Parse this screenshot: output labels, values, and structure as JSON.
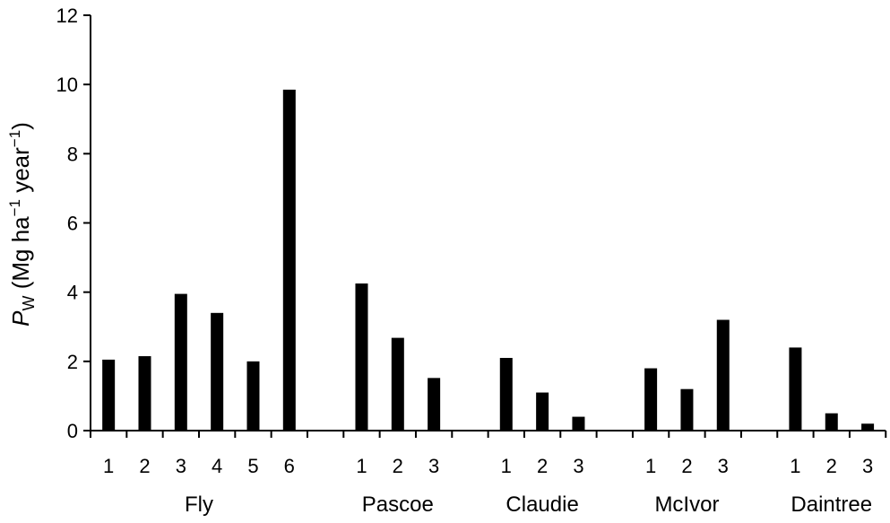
{
  "chart_data": {
    "type": "bar",
    "ylabel": {
      "symbol": "P",
      "subscript": "W",
      "unit_open": " (Mg ha",
      "exp1": "−1",
      "unit_mid": " year",
      "exp2": "−1",
      "unit_close": ")"
    },
    "ylim": [
      0,
      12
    ],
    "yticks": [
      "0",
      "2",
      "4",
      "6",
      "8",
      "10",
      "12"
    ],
    "grid": false,
    "bar_color": "#000000",
    "groups": [
      {
        "name": "Fly",
        "categories": [
          "1",
          "2",
          "3",
          "4",
          "5",
          "6"
        ],
        "values": [
          2.05,
          2.15,
          3.95,
          3.4,
          2.0,
          9.85
        ]
      },
      {
        "name": "Pascoe",
        "categories": [
          "1",
          "2",
          "3"
        ],
        "values": [
          4.25,
          2.68,
          1.52
        ]
      },
      {
        "name": "Claudie",
        "categories": [
          "1",
          "2",
          "3"
        ],
        "values": [
          2.1,
          1.1,
          0.4
        ]
      },
      {
        "name": "McIvor",
        "categories": [
          "1",
          "2",
          "3"
        ],
        "values": [
          1.8,
          1.2,
          3.2
        ]
      },
      {
        "name": "Daintree",
        "categories": [
          "1",
          "2",
          "3"
        ],
        "values": [
          2.4,
          0.5,
          0.2
        ]
      }
    ]
  }
}
